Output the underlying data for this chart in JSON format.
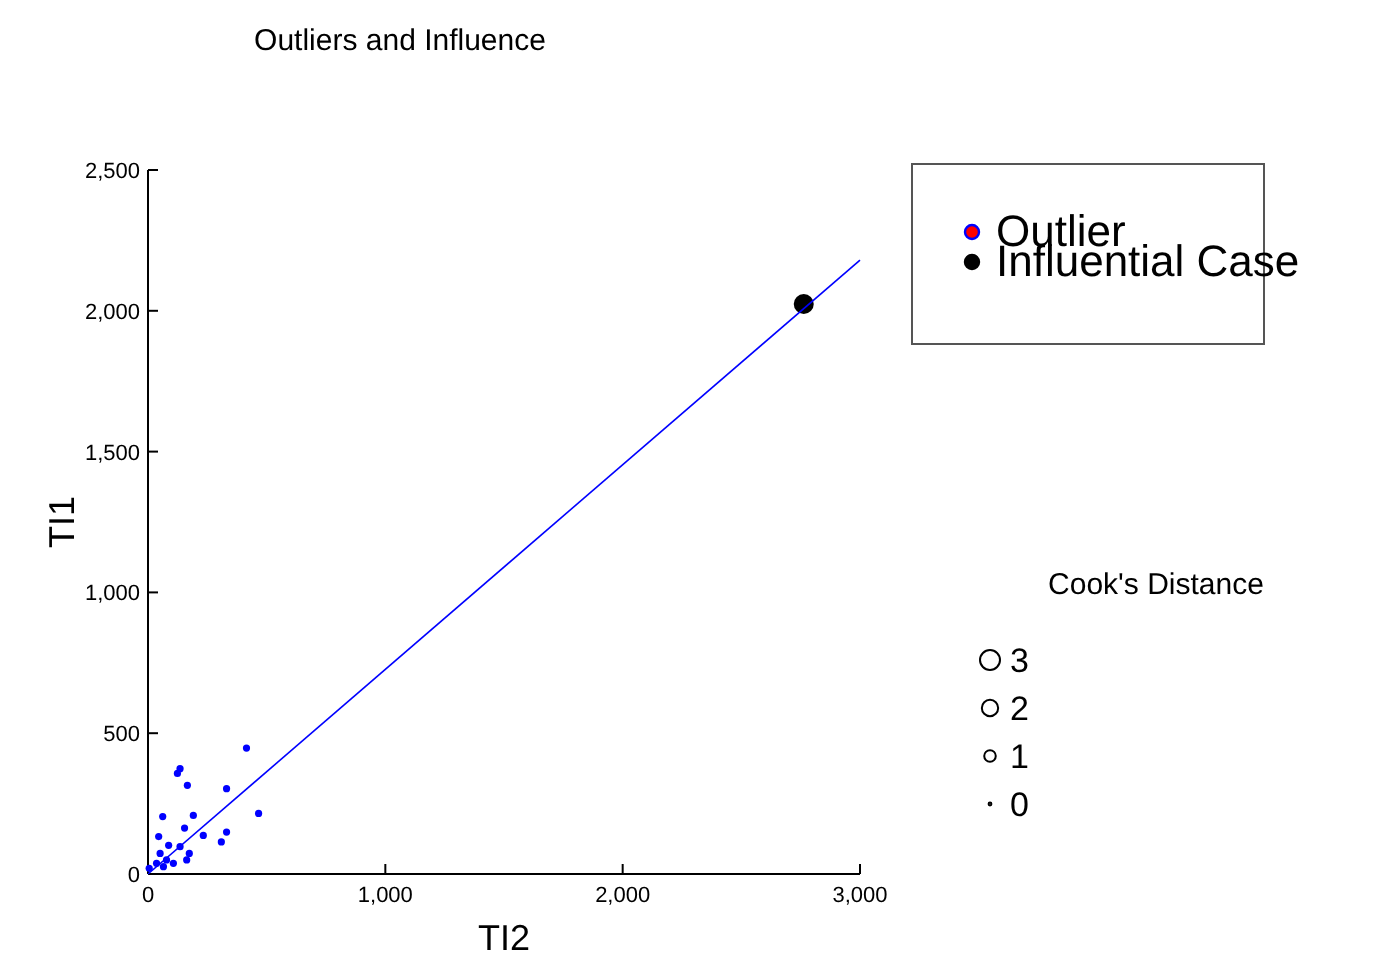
{
  "chart_data": {
    "type": "scatter",
    "title": "Outliers and Influence",
    "xlabel": "TI2",
    "ylabel": "TI1",
    "legend_title": "Cook's Distance",
    "size_legend": [
      3,
      2,
      1,
      0
    ],
    "legend": "right",
    "xlim": [
      0,
      3000
    ],
    "xticks": [
      0,
      {
        "value": 1000,
        "label": "1,000"
      },
      {
        "value": 2000,
        "label": "2,000"
      },
      {
        "value": 3000,
        "label": "3,000"
      }
    ],
    "ylim": [
      0,
      2500
    ],
    "yticks": [
      0,
      500,
      {
        "value": 1000,
        "label": "1,000"
      },
      {
        "value": 1500,
        "label": "1,500"
      },
      {
        "value": 2000,
        "label": "2,000"
      },
      {
        "value": 2500,
        "label": "2,500"
      }
    ],
    "series": [
      {
        "color": "#0000ff",
        "x": [
          415,
          135,
          124,
          166,
          331,
          62,
          191,
          466,
          154,
          331,
          233,
          309,
          45,
          87,
          135,
          174,
          163,
          51,
          78,
          36,
          65,
          107,
          5
        ],
        "values": [
          447,
          374,
          357,
          315,
          303,
          204,
          208,
          215,
          163,
          149,
          137,
          114,
          133,
          102,
          97,
          73,
          50,
          73,
          50,
          38,
          26,
          38,
          20
        ]
      },
      {
        "type": "bubble",
        "name": "Outlier",
        "color": "#ff0000"
      },
      {
        "type": "bubble",
        "name": "Influential Case",
        "color": "#000000",
        "x": [
          2763
        ],
        "values": [
          2024
        ],
        "sizes": [
          3
        ]
      },
      {
        "type": "line",
        "color": "#0000ff",
        "x": [
          0,
          3000
        ],
        "values": [
          0,
          2180
        ]
      }
    ]
  }
}
